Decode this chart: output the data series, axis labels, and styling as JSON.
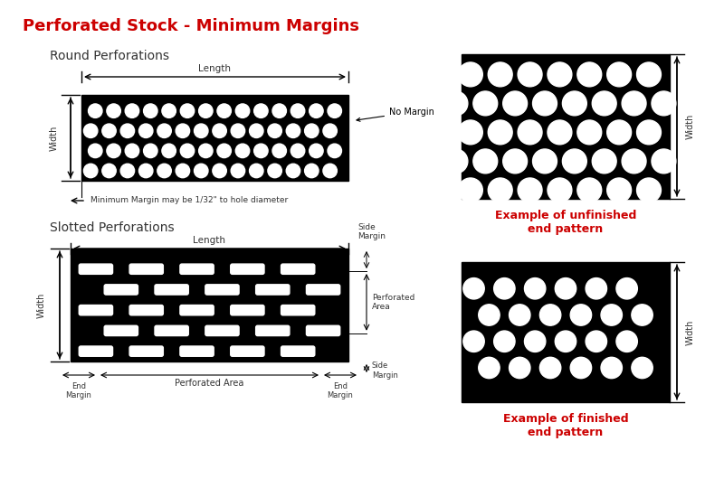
{
  "title": "Perforated Stock - Minimum Margins",
  "bg_color": "#ffffff",
  "title_color": "#cc0000",
  "text_color": "#333333",
  "black_color": "#000000",
  "round_label": "Round Perforations",
  "slot_label": "Slotted Perforations",
  "unfinished_label": "Example of unfinished\nend pattern",
  "finished_label": "Example of finished\nend pattern",
  "no_margin_label": "No Margin",
  "min_margin_label": "Minimum Margin may be 1/32\" to hole diameter",
  "length_label": "Length",
  "width_label": "Width",
  "side_margin_label": "Side\nMargin",
  "end_margin_label": "End\nMargin",
  "perf_area_label": "Perforated Area",
  "perf_area_right_label": "Perforated\nArea"
}
